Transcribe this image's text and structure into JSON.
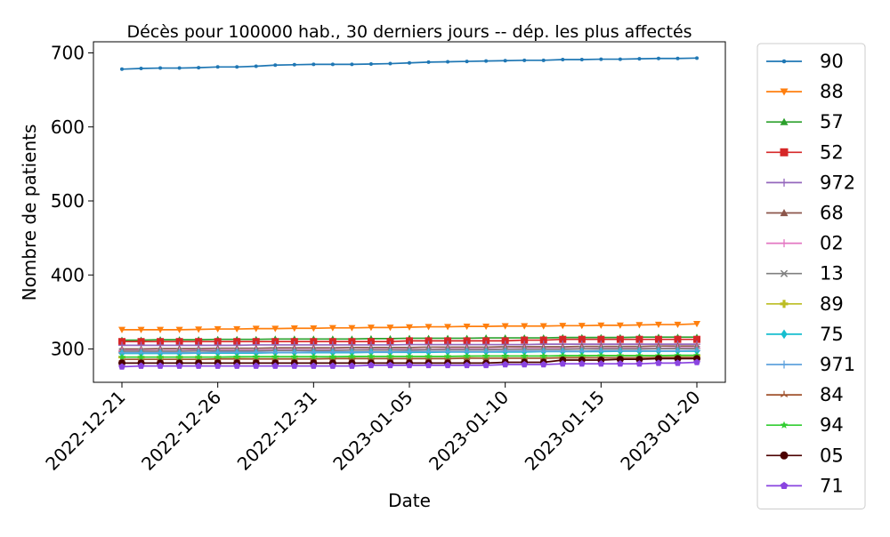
{
  "chart_data": {
    "type": "line",
    "title": "Décès pour 100000 hab., 30 derniers jours -- dép. les plus affectés",
    "xlabel": "Date",
    "ylabel": "Nombre de patients",
    "x": [
      "2022-12-21",
      "2022-12-22",
      "2022-12-23",
      "2022-12-24",
      "2022-12-25",
      "2022-12-26",
      "2022-12-27",
      "2022-12-28",
      "2022-12-29",
      "2022-12-30",
      "2022-12-31",
      "2023-01-01",
      "2023-01-02",
      "2023-01-03",
      "2023-01-04",
      "2023-01-05",
      "2023-01-06",
      "2023-01-07",
      "2023-01-08",
      "2023-01-09",
      "2023-01-10",
      "2023-01-11",
      "2023-01-12",
      "2023-01-13",
      "2023-01-14",
      "2023-01-15",
      "2023-01-16",
      "2023-01-17",
      "2023-01-18",
      "2023-01-19",
      "2023-01-20"
    ],
    "x_ticks": [
      "2022-12-21",
      "2022-12-26",
      "2022-12-31",
      "2023-01-05",
      "2023-01-10",
      "2023-01-15",
      "2023-01-20"
    ],
    "y_ticks": [
      300,
      400,
      500,
      600,
      700
    ],
    "ylim": [
      255,
      715
    ],
    "grid": false,
    "legend_position": "outside-right",
    "series": [
      {
        "name": "90",
        "color": "#1f77b4",
        "marker": "point",
        "values": [
          678,
          679,
          679.5,
          679.5,
          680,
          681,
          681,
          682,
          683.5,
          684,
          684.5,
          684.5,
          684.5,
          685,
          685.5,
          686.5,
          687.5,
          688,
          688.5,
          689,
          689.5,
          690,
          690,
          691,
          691,
          691.5,
          691.5,
          692,
          692.5,
          692.5,
          693
        ]
      },
      {
        "name": "88",
        "color": "#ff7f0e",
        "marker": "triangle-down",
        "values": [
          326,
          326,
          326,
          326,
          326.5,
          327,
          327,
          327.5,
          327.5,
          328,
          328,
          328.5,
          328.5,
          329,
          329,
          329.5,
          330,
          330,
          330.5,
          330.5,
          331,
          331,
          331,
          331.5,
          331.5,
          332,
          332,
          332.5,
          333,
          333,
          334
        ]
      },
      {
        "name": "57",
        "color": "#2ca02c",
        "marker": "triangle-up",
        "values": [
          312,
          312,
          312.5,
          312.5,
          312.5,
          313,
          313,
          313,
          313.5,
          313.5,
          313.5,
          313.5,
          313.5,
          314,
          314,
          314.5,
          314.5,
          314.5,
          314.5,
          315,
          315,
          315,
          315,
          315.5,
          315.5,
          315.5,
          315.5,
          316,
          316,
          316,
          316
        ]
      },
      {
        "name": "52",
        "color": "#d62728",
        "marker": "square",
        "values": [
          310,
          310,
          310,
          310,
          310,
          310,
          310,
          310,
          310,
          310,
          310,
          310,
          310,
          310,
          310,
          311,
          311,
          311,
          311,
          311,
          311,
          312,
          312,
          313,
          313,
          313,
          313,
          313,
          313,
          313,
          313
        ]
      },
      {
        "name": "972",
        "color": "#9467bd",
        "marker": "plus",
        "values": [
          305,
          305,
          305,
          305,
          305,
          305,
          305,
          305.5,
          305.5,
          305.5,
          305.5,
          305.5,
          305.5,
          305.5,
          305.5,
          306,
          306,
          306,
          306,
          306,
          306,
          306,
          306.5,
          306.5,
          306.5,
          306.5,
          306.5,
          306.5,
          306.5,
          306.5,
          306.5
        ]
      },
      {
        "name": "68",
        "color": "#8c564b",
        "marker": "triangle-up",
        "values": [
          300,
          300,
          300.5,
          300.5,
          300.5,
          301,
          301,
          301,
          301.5,
          301.5,
          301.5,
          301.5,
          302,
          302,
          302,
          302,
          302.5,
          302.5,
          302.5,
          302.5,
          303,
          303,
          303,
          303,
          303.5,
          303.5,
          303.5,
          303.5,
          304,
          304,
          304
        ]
      },
      {
        "name": "02",
        "color": "#e377c2",
        "marker": "plus",
        "values": [
          298,
          298,
          298,
          298,
          298.5,
          298.5,
          298.5,
          298.5,
          299,
          299,
          299,
          299,
          299,
          299.5,
          299.5,
          299.5,
          299.5,
          300,
          300,
          300,
          300,
          300.5,
          300.5,
          300.5,
          300.5,
          301,
          301,
          301,
          301,
          301.5,
          301.5
        ]
      },
      {
        "name": "13",
        "color": "#7f7f7f",
        "marker": "x",
        "values": [
          297,
          297,
          297,
          297,
          297.5,
          297.5,
          297.5,
          297.5,
          298,
          298,
          298,
          298,
          298.5,
          298.5,
          298.5,
          298.5,
          299,
          299,
          299,
          299,
          299.5,
          299.5,
          299.5,
          299.5,
          300,
          300,
          300,
          300,
          300.5,
          300.5,
          300.5
        ]
      },
      {
        "name": "89",
        "color": "#bcbd22",
        "marker": "plus-filled",
        "values": [
          289,
          289,
          289,
          289,
          289,
          289,
          289,
          289.5,
          289.5,
          289.5,
          289.5,
          289.5,
          289.5,
          290,
          290,
          290,
          290,
          290,
          290,
          290.5,
          290.5,
          290.5,
          290.5,
          290.5,
          290.5,
          291,
          291,
          291,
          291,
          291,
          291
        ]
      },
      {
        "name": "75",
        "color": "#17becf",
        "marker": "diamond",
        "values": [
          294,
          294,
          294,
          294,
          294.5,
          294.5,
          294.5,
          294.5,
          295,
          295,
          295,
          295,
          295,
          295.5,
          295.5,
          295.5,
          295.5,
          296,
          296,
          296,
          296,
          296,
          296.5,
          296.5,
          296.5,
          296.5,
          297,
          297,
          297,
          297,
          297
        ]
      },
      {
        "name": "971",
        "color": "#5fa2dd",
        "marker": "plus",
        "values": [
          295,
          295,
          295,
          295,
          295,
          295.5,
          295.5,
          295.5,
          295.5,
          295.5,
          296,
          296,
          296,
          296,
          296,
          296.5,
          296.5,
          296.5,
          296.5,
          296.5,
          297,
          297,
          297,
          297,
          297,
          297.5,
          297.5,
          297.5,
          297.5,
          297.5,
          298
        ]
      },
      {
        "name": "84",
        "color": "#a0522d",
        "marker": "tri",
        "values": [
          286,
          286,
          286,
          286,
          286,
          286.5,
          286.5,
          286.5,
          286.5,
          286.5,
          286.5,
          287,
          287,
          287,
          287,
          287,
          287,
          287,
          287.5,
          287.5,
          287.5,
          287.5,
          287.5,
          288,
          288,
          288,
          288,
          288,
          288.5,
          288.5,
          288.5
        ]
      },
      {
        "name": "94",
        "color": "#32cd32",
        "marker": "star",
        "values": [
          289,
          289,
          289,
          289,
          289,
          289,
          289.5,
          289.5,
          289.5,
          289.5,
          289.5,
          289.5,
          290,
          290,
          290,
          290,
          290,
          290,
          290.5,
          290.5,
          290.5,
          290.5,
          290.5,
          291,
          291,
          291,
          291,
          291,
          291,
          291.5,
          291.5
        ]
      },
      {
        "name": "05",
        "color": "#4b0000",
        "marker": "circle",
        "values": [
          281,
          281,
          281,
          281,
          281,
          281,
          281,
          281,
          281,
          281,
          281,
          281,
          281,
          281,
          281,
          281,
          281,
          281,
          281,
          281,
          282,
          282,
          282,
          285,
          285,
          285,
          286,
          286,
          287,
          287,
          287
        ]
      },
      {
        "name": "71",
        "color": "#8a44e0",
        "marker": "pentagon",
        "values": [
          276,
          277,
          277,
          277,
          277,
          277,
          277,
          277,
          277,
          277,
          277,
          277,
          277,
          278,
          278,
          278,
          278,
          278,
          278,
          278,
          279,
          279,
          279,
          280,
          280,
          280,
          280,
          280,
          281,
          281,
          282
        ]
      }
    ]
  }
}
